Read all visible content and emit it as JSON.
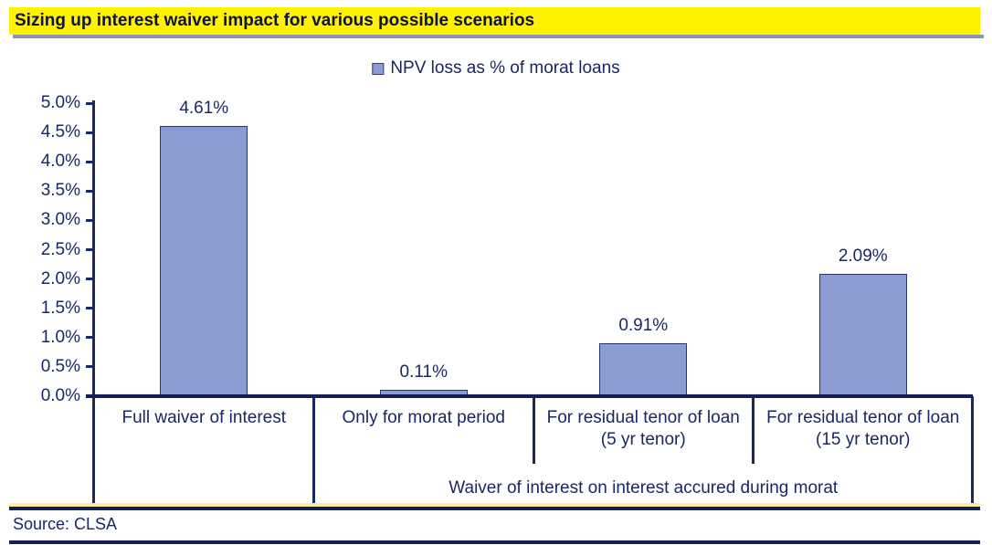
{
  "title": "Sizing up interest waiver impact for various possible scenarios",
  "source": "Source: CLSA",
  "colors": {
    "navy_text": "#1B2764",
    "navy_line": "#141F55",
    "bar_fill": "#8A9CD1",
    "bar_border": "#26356F",
    "title_highlight_yellow": "#FFF200",
    "title_underline_gray": "#8896AF",
    "bottom_rule_yellow": "#F7F1A0"
  },
  "chart_data": {
    "type": "bar",
    "title": "Sizing up interest waiver impact for various possible scenarios",
    "legend": "NPV loss as % of morat loans",
    "legend_position": "top",
    "categories": [
      "Full waiver of interest",
      "Only for morat period",
      "For residual tenor of loan (5 yr tenor)",
      "For residual tenor of loan (15 yr tenor)"
    ],
    "values": [
      4.61,
      0.11,
      0.91,
      2.09
    ],
    "value_labels": [
      "4.61%",
      "0.11%",
      "0.91%",
      "2.09%"
    ],
    "group_axis_label": "Waiver of interest on interest accured during morat",
    "group_axis_span_categories": [
      1,
      2,
      3
    ],
    "ylabel": "",
    "xlabel": "",
    "ylim": [
      0,
      5
    ],
    "ytick_step": 0.5,
    "ytick_labels": [
      "0.0%",
      "0.5%",
      "1.0%",
      "1.5%",
      "2.0%",
      "2.5%",
      "3.0%",
      "3.5%",
      "4.0%",
      "4.5%",
      "5.0%"
    ],
    "grid": false
  }
}
